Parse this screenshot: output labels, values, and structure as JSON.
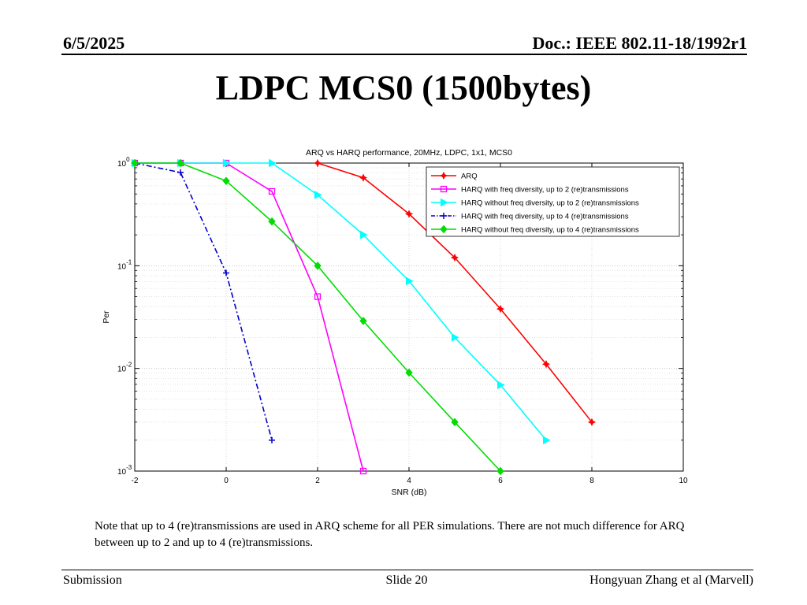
{
  "header": {
    "date": "6/5/2025",
    "doc": "Doc.: IEEE 802.11-18/1992r1"
  },
  "slide_title": "LDPC MCS0 (1500bytes)",
  "note": "Note that up to 4 (re)transmissions are used in ARQ scheme for all PER simulations. There are not much difference for ARQ between up to 2 and up to 4 (re)transmissions.",
  "footer": {
    "left": "Submission",
    "center": "Slide 20",
    "right": "Hongyuan Zhang et al (Marvell)"
  },
  "chart_data": {
    "type": "line",
    "title": "ARQ vs HARQ performance, 20MHz, LDPC, 1x1, MCS0",
    "xlabel": "SNR (dB)",
    "ylabel": "Per",
    "xlim": [
      -2,
      10
    ],
    "ylim": [
      0.001,
      1
    ],
    "yscale": "log",
    "grid": true,
    "legend_position": "top-right",
    "x_ticks": [
      "-2",
      "0",
      "2",
      "4",
      "6",
      "8",
      "10"
    ],
    "y_ticks": [
      {
        "base": "10",
        "exp": "0"
      },
      {
        "base": "10",
        "exp": "-1"
      },
      {
        "base": "10",
        "exp": "-2"
      },
      {
        "base": "10",
        "exp": "-3"
      }
    ],
    "series": [
      {
        "name": "ARQ",
        "color": "#ff0000",
        "marker": "star",
        "dash": "solid",
        "x": [
          2,
          3,
          4,
          5,
          6,
          7,
          8
        ],
        "y": [
          1,
          0.72,
          0.32,
          0.12,
          0.038,
          0.011,
          0.003
        ]
      },
      {
        "name": "HARQ with freq diversity, up to 2 (re)transmissions",
        "color": "#ff00ff",
        "marker": "square",
        "dash": "solid",
        "x": [
          -2,
          -1,
          0,
          1,
          2,
          3
        ],
        "y": [
          1,
          1,
          1,
          0.53,
          0.05,
          0.001
        ]
      },
      {
        "name": "HARQ without freq diversity, up to 2 (re)transmissions",
        "color": "#00ffff",
        "marker": "triangle-right",
        "dash": "solid",
        "x": [
          -2,
          -1,
          0,
          1,
          2,
          3,
          4,
          5,
          6,
          7
        ],
        "y": [
          1,
          1,
          1,
          1,
          0.49,
          0.2,
          0.071,
          0.02,
          0.0069,
          0.002
        ]
      },
      {
        "name": "HARQ with freq diversity, up to 4 (re)transmissions",
        "color": "#0000cc",
        "marker": "plus",
        "dash": "dashdot",
        "x": [
          -2,
          -1,
          0,
          1
        ],
        "y": [
          1,
          0.81,
          0.085,
          0.002
        ]
      },
      {
        "name": "HARQ without freq diversity, up to 4 (re)transmissions",
        "color": "#00dd00",
        "marker": "diamond",
        "dash": "solid",
        "x": [
          -2,
          -1,
          0,
          1,
          2,
          3,
          4,
          5,
          6
        ],
        "y": [
          1,
          1,
          0.67,
          0.27,
          0.1,
          0.029,
          0.0091,
          0.003,
          0.001
        ]
      }
    ]
  }
}
